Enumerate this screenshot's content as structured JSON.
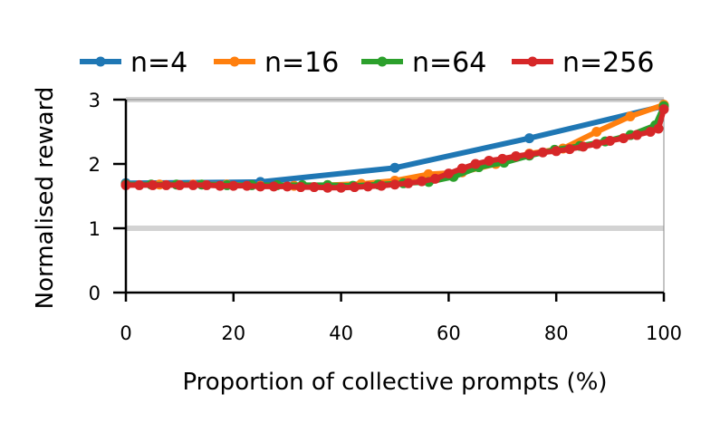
{
  "chart_data": {
    "type": "line",
    "title": "",
    "xlabel": "Proportion of collective prompts (%)",
    "ylabel": "Normalised reward",
    "xlim": [
      0,
      100
    ],
    "ylim": [
      0,
      3
    ],
    "xticks": [
      "0",
      "20",
      "40",
      "60",
      "80",
      "100"
    ],
    "yticks": [
      "0",
      "1",
      "2",
      "3"
    ],
    "reference_lines": [
      1,
      3
    ],
    "legend_position": "top",
    "series": [
      {
        "name": "n=4",
        "color": "#1f77b4",
        "x": [
          0,
          25,
          50,
          75,
          100
        ],
        "y": [
          1.7,
          1.72,
          1.94,
          2.4,
          2.9
        ]
      },
      {
        "name": "n=16",
        "color": "#ff7f0e",
        "x": [
          0,
          6.25,
          12.5,
          18.75,
          25,
          31.25,
          37.5,
          43.75,
          50,
          56.25,
          62.5,
          68.75,
          75,
          81.25,
          87.5,
          93.75,
          100
        ],
        "y": [
          1.68,
          1.68,
          1.68,
          1.68,
          1.66,
          1.66,
          1.67,
          1.69,
          1.74,
          1.84,
          1.87,
          2.0,
          2.16,
          2.24,
          2.5,
          2.74,
          2.92
        ]
      },
      {
        "name": "n=64",
        "color": "#2ca02c",
        "x": [
          0,
          4.7,
          9.4,
          14.1,
          18.8,
          23.4,
          28.1,
          32.8,
          37.5,
          42.2,
          46.9,
          51.6,
          56.3,
          60.9,
          65.6,
          70.3,
          75,
          79.7,
          84.4,
          89.1,
          93.8,
          98.4,
          100
        ],
        "y": [
          1.68,
          1.68,
          1.68,
          1.68,
          1.67,
          1.67,
          1.67,
          1.67,
          1.67,
          1.66,
          1.68,
          1.7,
          1.72,
          1.8,
          1.95,
          2.02,
          2.13,
          2.22,
          2.28,
          2.35,
          2.45,
          2.6,
          2.9
        ]
      },
      {
        "name": "n=256",
        "color": "#d62728",
        "x": [
          0,
          2.5,
          5,
          7.5,
          10,
          12.5,
          15,
          17.5,
          20,
          22.5,
          25,
          27.5,
          30,
          32.5,
          35,
          37.5,
          40,
          42.5,
          45,
          47.5,
          50,
          52.5,
          55,
          57.5,
          60,
          62.5,
          65,
          67.5,
          70,
          72.5,
          75,
          77.5,
          80,
          82.5,
          85,
          87.5,
          90,
          92.5,
          95,
          97.5,
          99,
          100
        ],
        "y": [
          1.67,
          1.67,
          1.67,
          1.67,
          1.67,
          1.67,
          1.67,
          1.66,
          1.66,
          1.66,
          1.65,
          1.65,
          1.65,
          1.64,
          1.64,
          1.63,
          1.63,
          1.64,
          1.65,
          1.66,
          1.68,
          1.7,
          1.73,
          1.77,
          1.85,
          1.93,
          2.0,
          2.05,
          2.08,
          2.12,
          2.15,
          2.18,
          2.2,
          2.23,
          2.27,
          2.31,
          2.36,
          2.4,
          2.45,
          2.5,
          2.55,
          2.85
        ]
      }
    ]
  }
}
